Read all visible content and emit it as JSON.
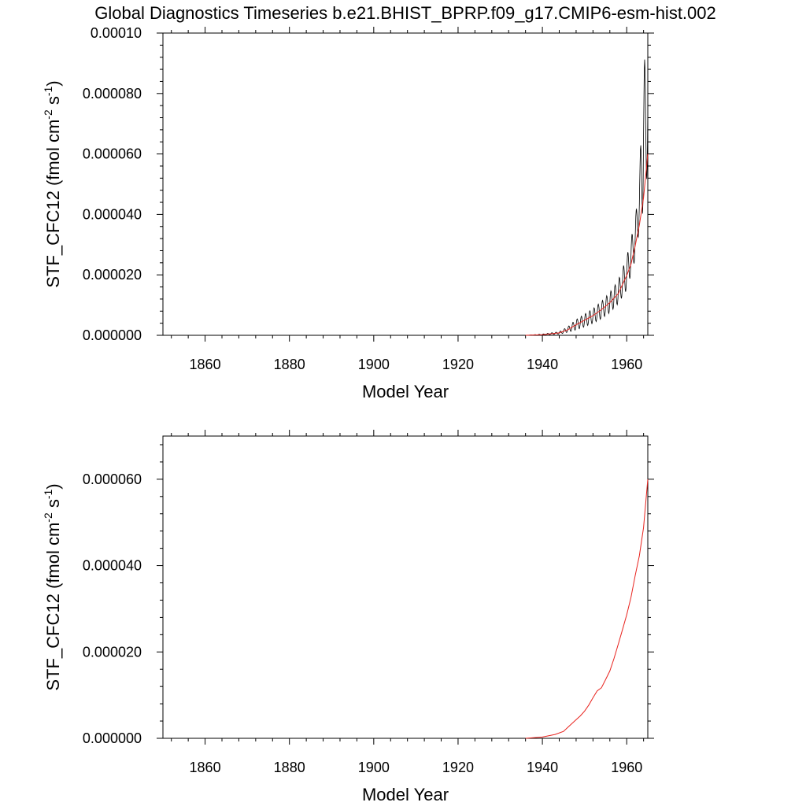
{
  "figure": {
    "title": "Global Diagnostics Timeseries b.e21.BHIST_BPRP.f09_g17.CMIP6-esm-hist.002"
  },
  "colors": {
    "monthly": "#000000",
    "annual": "#e8231e",
    "axes": "#000000"
  },
  "chart_data": [
    {
      "type": "line",
      "xlabel": "Model Year",
      "ylabel_main": "STF_CFC12 (fmol cm",
      "ylabel_sup1": "-2",
      "ylabel_mid": " s",
      "ylabel_sup2": "-1",
      "ylabel_end": ")",
      "xlim": [
        1850,
        1965
      ],
      "ylim": [
        0,
        0.0001
      ],
      "x_ticks": [
        1860,
        1880,
        1900,
        1920,
        1940,
        1960
      ],
      "x_tick_labels": [
        "1860",
        "1880",
        "1900",
        "1920",
        "1940",
        "1960"
      ],
      "y_ticks": [
        0,
        2e-05,
        4e-05,
        6e-05,
        8e-05,
        0.0001
      ],
      "y_tick_labels": [
        "0.000000",
        "0.000020",
        "0.000040",
        "0.000060",
        "0.000080",
        "0.00010"
      ],
      "grid": false,
      "series": [
        {
          "kind": "monthly",
          "color": "#000000",
          "x_start": 1936,
          "x_end": 1965,
          "envelope_x": [
            1936,
            1940,
            1944,
            1946,
            1948,
            1950,
            1952,
            1954,
            1956,
            1958,
            1960,
            1962,
            1963,
            1964,
            1965
          ],
          "envelope_max": [
            0,
            4e-07,
            1.2e-06,
            2.8e-06,
            5.2e-06,
            7e-06,
            8.8e-06,
            1.12e-05,
            1.42e-05,
            1.82e-05,
            2.6e-05,
            3.8e-05,
            5.2e-05,
            9e-05,
            9.5e-05
          ],
          "envelope_min": [
            0,
            1e-07,
            4e-07,
            1e-06,
            1.8e-06,
            2.8e-06,
            4e-06,
            5.5e-06,
            7.5e-06,
            1.05e-05,
            1.5e-05,
            2.5e-05,
            3.5e-05,
            4.2e-05,
            5.5e-05
          ]
        },
        {
          "kind": "annual",
          "color": "#e8231e",
          "x": [
            1936,
            1940,
            1944,
            1946,
            1948,
            1950,
            1952,
            1954,
            1956,
            1958,
            1960,
            1961,
            1962,
            1963,
            1964,
            1965
          ],
          "y": [
            0,
            2e-07,
            8e-07,
            1.8e-06,
            3.5e-06,
            5e-06,
            6.5e-06,
            8.5e-06,
            1.08e-05,
            1.38e-05,
            1.98e-05,
            2.35e-05,
            2.95e-05,
            3.65e-05,
            4.55e-05,
            6e-05
          ]
        }
      ]
    },
    {
      "type": "line",
      "xlabel": "Model Year",
      "ylabel_main": "STF_CFC12 (fmol cm",
      "ylabel_sup1": "-2",
      "ylabel_mid": " s",
      "ylabel_sup2": "-1",
      "ylabel_end": ")",
      "xlim": [
        1850,
        1965
      ],
      "ylim": [
        0,
        7e-05
      ],
      "x_ticks": [
        1860,
        1880,
        1900,
        1920,
        1940,
        1960
      ],
      "x_tick_labels": [
        "1860",
        "1880",
        "1900",
        "1920",
        "1940",
        "1960"
      ],
      "y_ticks": [
        0,
        2e-05,
        4e-05,
        6e-05
      ],
      "y_tick_labels": [
        "0.000000",
        "0.000020",
        "0.000040",
        "0.000060"
      ],
      "grid": false,
      "series": [
        {
          "kind": "annual",
          "color": "#e8231e",
          "x": [
            1936,
            1940,
            1943,
            1945,
            1946,
            1947,
            1948,
            1949,
            1950,
            1951,
            1952,
            1953,
            1954,
            1955,
            1956,
            1957,
            1958,
            1959,
            1960,
            1961,
            1962,
            1963,
            1964,
            1965
          ],
          "y": [
            0,
            3e-07,
            9e-07,
            1.6e-06,
            2.5e-06,
            3.4e-06,
            4.3e-06,
            5.2e-06,
            6.3e-06,
            7.7e-06,
            9.4e-06,
            1.1e-05,
            1.17e-05,
            1.36e-05,
            1.56e-05,
            1.85e-05,
            2.18e-05,
            2.52e-05,
            2.86e-05,
            3.26e-05,
            3.76e-05,
            4.23e-05,
            4.88e-05,
            6e-05
          ]
        }
      ]
    }
  ]
}
